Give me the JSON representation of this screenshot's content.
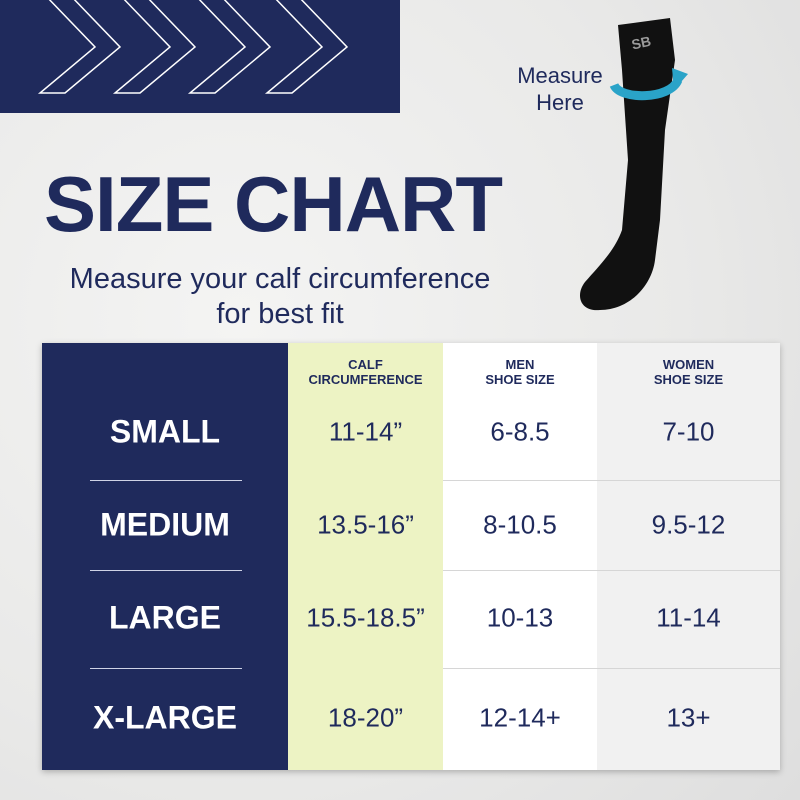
{
  "title": "SIZE CHART",
  "subtitle": [
    "Measure your calf circumference",
    "for best fit"
  ],
  "callout": [
    "Measure",
    "Here"
  ],
  "sock_logo": "SB",
  "colors": {
    "navy": "#1f2a5c",
    "calf_column": "#edf3c4",
    "arrow": "#2aa3c8"
  },
  "table": {
    "headers": [
      [
        "CALF",
        "CIRCUMFERENCE"
      ],
      [
        "MEN",
        "SHOE SIZE"
      ],
      [
        "WOMEN",
        "SHOE SIZE"
      ]
    ],
    "rows": [
      {
        "size": "SMALL",
        "calf": "11-14”",
        "men": "6-8.5",
        "women": "7-10"
      },
      {
        "size": "MEDIUM",
        "calf": "13.5-16”",
        "men": "8-10.5",
        "women": "9.5-12"
      },
      {
        "size": "LARGE",
        "calf": "15.5-18.5”",
        "men": "10-13",
        "women": "11-14"
      },
      {
        "size": "X-LARGE",
        "calf": "18-20”",
        "men": "12-14+",
        "women": "13+"
      }
    ]
  }
}
